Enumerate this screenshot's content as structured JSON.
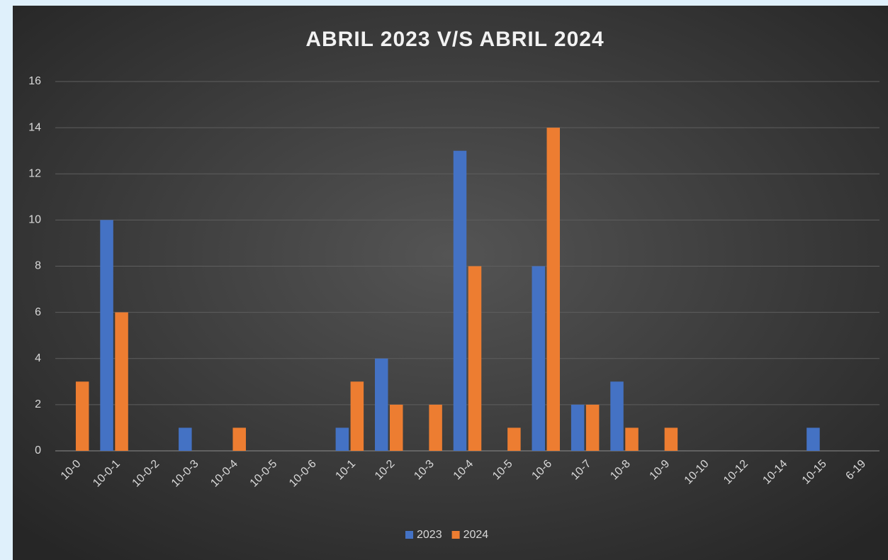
{
  "chart_data": {
    "type": "bar",
    "title": "ABRIL 2023 V/S ABRIL 2024",
    "categories": [
      "10-0",
      "10-0-1",
      "10-0-2",
      "10-0-3",
      "10-0-4",
      "10-0-5",
      "10-0-6",
      "10-1",
      "10-2",
      "10-3",
      "10-4",
      "10-5",
      "10-6",
      "10-7",
      "10-8",
      "10-9",
      "10-10",
      "10-12",
      "10-14",
      "10-15",
      "6-19"
    ],
    "series": [
      {
        "name": "2023",
        "color": "#4472c4",
        "values": [
          0,
          10,
          0,
          1,
          0,
          0,
          0,
          1,
          4,
          0,
          13,
          0,
          8,
          2,
          3,
          0,
          0,
          0,
          0,
          1,
          0
        ]
      },
      {
        "name": "2024",
        "color": "#ed7d31",
        "values": [
          3,
          6,
          0,
          0,
          1,
          0,
          0,
          3,
          2,
          2,
          8,
          1,
          14,
          2,
          1,
          1,
          0,
          0,
          0,
          0,
          0
        ]
      }
    ],
    "ylim": [
      0,
      16
    ],
    "yticks": [
      0,
      2,
      4,
      6,
      8,
      10,
      12,
      14,
      16
    ],
    "grid": true,
    "legend": "bottom"
  }
}
